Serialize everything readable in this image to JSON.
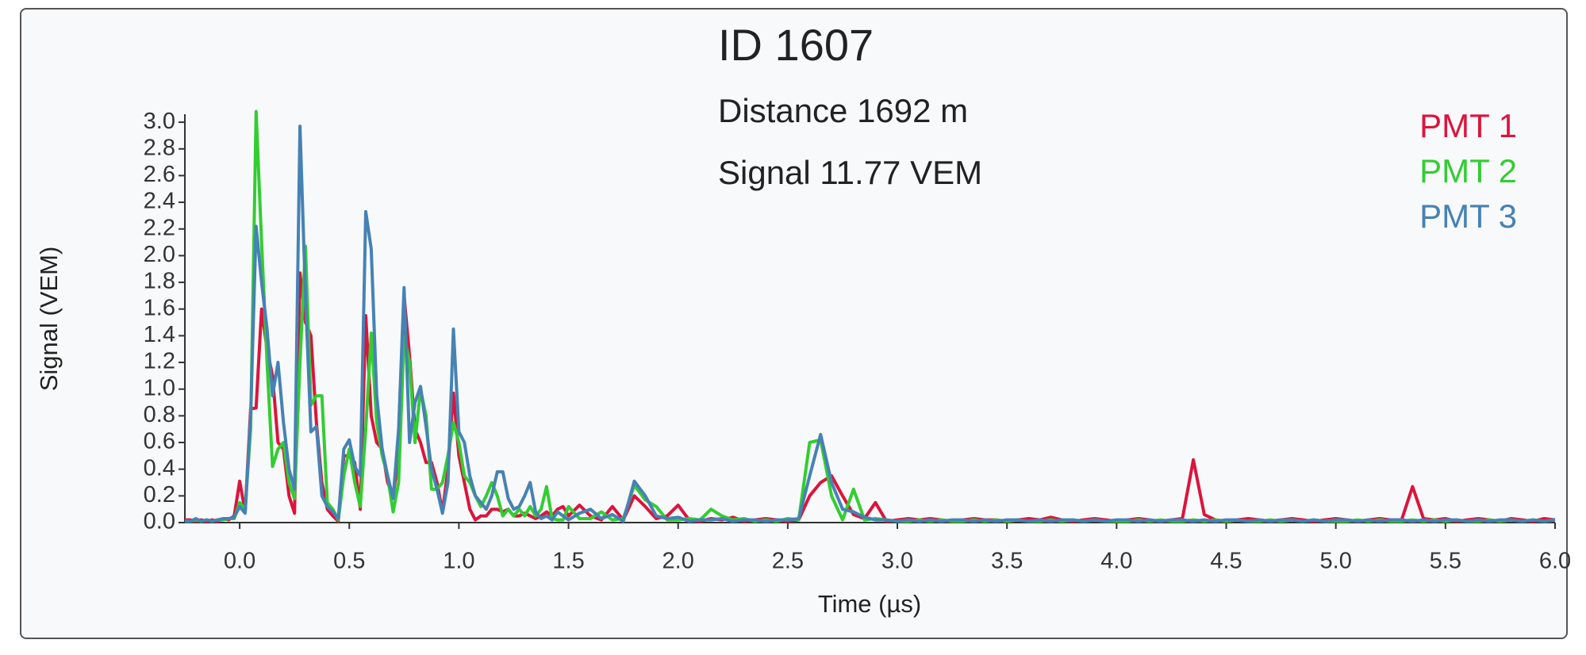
{
  "chart_data": {
    "type": "line",
    "title": "ID 1607",
    "subtitles": [
      "Distance 1692 m",
      "Signal 11.77 VEM"
    ],
    "x_label": "Time (µs)",
    "y_label": "Signal (VEM)",
    "legend": "top-right",
    "xlim": [
      -0.25,
      6.0
    ],
    "ylim": [
      0,
      3.06
    ],
    "xticks": [
      {
        "value": 0,
        "label": "0.0"
      },
      0.5,
      {
        "value": 1,
        "label": "1.0"
      },
      1.5,
      {
        "value": 2,
        "label": "2.0"
      },
      2.5,
      {
        "value": 3,
        "label": "3.0"
      },
      3.5,
      {
        "value": 4,
        "label": "4.0"
      },
      4.5,
      {
        "value": 5,
        "label": "5.0"
      },
      5.5,
      {
        "value": 6,
        "label": "6.0"
      }
    ],
    "yticks": [
      {
        "value": 0,
        "label": "0.0"
      },
      0.2,
      0.4,
      0.6,
      0.8,
      {
        "value": 1,
        "label": "1.0"
      },
      1.2,
      1.4,
      1.6,
      1.8,
      {
        "value": 2,
        "label": "2.0"
      },
      2.2,
      2.4,
      2.6,
      2.8,
      {
        "value": 3,
        "label": "3.0"
      }
    ],
    "x": [
      -0.25,
      -0.225,
      -0.2,
      -0.175,
      -0.15,
      -0.125,
      -0.1,
      -0.075,
      -0.05,
      -0.025,
      0,
      0.025,
      0.05,
      0.075,
      0.1,
      0.125,
      0.15,
      0.175,
      0.2,
      0.225,
      0.25,
      0.275,
      0.3,
      0.325,
      0.35,
      0.375,
      0.4,
      0.425,
      0.45,
      0.475,
      0.5,
      0.525,
      0.55,
      0.575,
      0.6,
      0.625,
      0.65,
      0.675,
      0.7,
      0.725,
      0.75,
      0.775,
      0.8,
      0.825,
      0.85,
      0.875,
      0.9,
      0.925,
      0.95,
      0.975,
      1,
      1.025,
      1.05,
      1.075,
      1.1,
      1.125,
      1.15,
      1.175,
      1.2,
      1.225,
      1.25,
      1.275,
      1.3,
      1.325,
      1.35,
      1.375,
      1.4,
      1.425,
      1.45,
      1.475,
      1.5,
      1.55,
      1.6,
      1.65,
      1.7,
      1.75,
      1.8,
      1.85,
      1.9,
      1.95,
      2,
      2.05,
      2.1,
      2.15,
      2.2,
      2.25,
      2.3,
      2.35,
      2.4,
      2.45,
      2.5,
      2.55,
      2.6,
      2.65,
      2.7,
      2.75,
      2.8,
      2.85,
      2.9,
      2.95,
      3,
      3.05,
      3.1,
      3.15,
      3.2,
      3.25,
      3.3,
      3.35,
      3.4,
      3.45,
      3.5,
      3.55,
      3.6,
      3.65,
      3.7,
      3.75,
      3.8,
      3.85,
      3.9,
      3.95,
      4,
      4.05,
      4.1,
      4.15,
      4.2,
      4.25,
      4.3,
      4.35,
      4.4,
      4.45,
      4.5,
      4.55,
      4.6,
      4.65,
      4.7,
      4.75,
      4.8,
      4.85,
      4.9,
      4.95,
      5,
      5.05,
      5.1,
      5.15,
      5.2,
      5.25,
      5.3,
      5.35,
      5.4,
      5.45,
      5.5,
      5.55,
      5.6,
      5.65,
      5.7,
      5.75,
      5.8,
      5.85,
      5.9,
      5.95,
      6
    ],
    "series": [
      {
        "name": "PMT 1",
        "color": "#dc143c",
        "values": [
          0.02,
          0.02,
          0.01,
          0.02,
          0.01,
          0.02,
          0.01,
          0.03,
          0.02,
          0.05,
          0.31,
          0.08,
          0.85,
          0.86,
          1.6,
          1.3,
          1.1,
          0.6,
          0.55,
          0.2,
          0.07,
          1.87,
          1.5,
          1.4,
          0.75,
          0.3,
          0.1,
          0.05,
          0.01,
          0.5,
          0.5,
          0.45,
          0.1,
          1.55,
          0.8,
          0.6,
          0.55,
          0.3,
          0.2,
          0.5,
          1.7,
          1.25,
          0.7,
          0.6,
          0.45,
          0.45,
          0.3,
          0.08,
          0.4,
          0.97,
          0.5,
          0.3,
          0.1,
          0.02,
          0.05,
          0.05,
          0.1,
          0.1,
          0.08,
          0.1,
          0.05,
          0.05,
          0.07,
          0.05,
          0.03,
          0.05,
          0.08,
          0.05,
          0.1,
          0.12,
          0.05,
          0.13,
          0.05,
          0.02,
          0.12,
          0.02,
          0.2,
          0.12,
          0.03,
          0.05,
          0.13,
          0.02,
          0.01,
          0.03,
          0.02,
          0.04,
          0.01,
          0.02,
          0.03,
          0.02,
          0.01,
          0.02,
          0.2,
          0.3,
          0.35,
          0.2,
          0.06,
          0.03,
          0.15,
          0.01,
          0.02,
          0.03,
          0.02,
          0.03,
          0.02,
          0.01,
          0.02,
          0.03,
          0.02,
          0.02,
          0.01,
          0.02,
          0.03,
          0.02,
          0.04,
          0.02,
          0.01,
          0.02,
          0.03,
          0.02,
          0.01,
          0.02,
          0.03,
          0.02,
          0.01,
          0.02,
          0.03,
          0.47,
          0.06,
          0.02,
          0.01,
          0.02,
          0.03,
          0.02,
          0.01,
          0.02,
          0.03,
          0.02,
          0.01,
          0.02,
          0.03,
          0.02,
          0.01,
          0.02,
          0.03,
          0.02,
          0.02,
          0.27,
          0.03,
          0.02,
          0.03,
          0.01,
          0.02,
          0.03,
          0.02,
          0.01,
          0.03,
          0.02,
          0.01,
          0.03,
          0.02
        ]
      },
      {
        "name": "PMT 2",
        "color": "#32cd32",
        "values": [
          0.01,
          0.01,
          0.02,
          0.01,
          0.02,
          0.01,
          0.02,
          0.02,
          0.03,
          0.03,
          0.15,
          0.1,
          0.7,
          3.08,
          2.1,
          1.2,
          0.42,
          0.55,
          0.6,
          0.3,
          0.18,
          1.2,
          2.07,
          0.88,
          0.95,
          0.95,
          0.15,
          0.1,
          0.02,
          0.35,
          0.55,
          0.3,
          0.12,
          0.7,
          1.42,
          0.75,
          0.5,
          0.35,
          0.08,
          0.3,
          1.4,
          1.2,
          0.6,
          1.0,
          0.8,
          0.25,
          0.25,
          0.3,
          0.5,
          0.75,
          0.6,
          0.35,
          0.3,
          0.2,
          0.12,
          0.2,
          0.3,
          0.2,
          0.05,
          0.1,
          0.05,
          0.1,
          0.05,
          0.12,
          0.05,
          0.1,
          0.27,
          0.03,
          0.02,
          0.02,
          0.12,
          0.03,
          0.03,
          0.08,
          0.02,
          0.03,
          0.28,
          0.17,
          0.12,
          0.02,
          0.02,
          0.03,
          0.02,
          0.1,
          0.05,
          0.02,
          0.03,
          0.01,
          0.02,
          0.01,
          0.03,
          0.02,
          0.6,
          0.62,
          0.2,
          0.02,
          0.25,
          0.02,
          0.03,
          0.02,
          0.01,
          0.01,
          0.02,
          0.01,
          0.02,
          0.01,
          0.01,
          0.02,
          0.01,
          0.02,
          0.01,
          0.02,
          0.01,
          0.01,
          0.02,
          0.01,
          0.02,
          0.01,
          0.02,
          0.01,
          0.01,
          0.01,
          0.02,
          0.01,
          0.02,
          0.01,
          0.01,
          0.02,
          0.01,
          0.02,
          0.01,
          0.02,
          0.01,
          0.01,
          0.02,
          0.01,
          0.02,
          0.01,
          0.02,
          0.01,
          0.01,
          0.01,
          0.02,
          0.01,
          0.02,
          0.01,
          0.01,
          0.02,
          0.01,
          0.02,
          0.01,
          0.02,
          0.01,
          0.01,
          0.02,
          0.01,
          0.02,
          0.01,
          0.02,
          0.01,
          0.02
        ]
      },
      {
        "name": "PMT 3",
        "color": "#4682b4",
        "values": [
          0.01,
          0.01,
          0.03,
          0.01,
          0.02,
          0.01,
          0.02,
          0.03,
          0.03,
          0.04,
          0.12,
          0.07,
          0.8,
          2.22,
          1.8,
          1.45,
          0.95,
          1.2,
          0.75,
          0.4,
          0.25,
          2.97,
          1.7,
          0.68,
          0.72,
          0.2,
          0.12,
          0.08,
          0.03,
          0.55,
          0.62,
          0.42,
          0.35,
          2.33,
          2.05,
          0.95,
          0.55,
          0.35,
          0.18,
          0.7,
          1.76,
          0.6,
          0.9,
          1.02,
          0.72,
          0.4,
          0.25,
          0.07,
          0.3,
          1.45,
          0.68,
          0.6,
          0.35,
          0.2,
          0.15,
          0.1,
          0.2,
          0.38,
          0.38,
          0.18,
          0.1,
          0.12,
          0.2,
          0.3,
          0.08,
          0.03,
          0.05,
          0.02,
          0.08,
          0.05,
          0.02,
          0.07,
          0.1,
          0.03,
          0.06,
          0.01,
          0.31,
          0.2,
          0.05,
          0.03,
          0.04,
          0.01,
          0.02,
          0.02,
          0.03,
          0.01,
          0.02,
          0.02,
          0.01,
          0.02,
          0.02,
          0.03,
          0.35,
          0.66,
          0.3,
          0.1,
          0.08,
          0.04,
          0.02,
          0.02,
          0.01,
          0.02,
          0.01,
          0.02,
          0.01,
          0.02,
          0.02,
          0.01,
          0.02,
          0.01,
          0.02,
          0.02,
          0.01,
          0.02,
          0.01,
          0.02,
          0.02,
          0.01,
          0.02,
          0.01,
          0.02,
          0.02,
          0.01,
          0.02,
          0.01,
          0.02,
          0.02,
          0.01,
          0.02,
          0.01,
          0.02,
          0.02,
          0.01,
          0.02,
          0.01,
          0.02,
          0.02,
          0.01,
          0.02,
          0.01,
          0.02,
          0.02,
          0.01,
          0.02,
          0.01,
          0.02,
          0.02,
          0.01,
          0.02,
          0.01,
          0.02,
          0.02,
          0.01,
          0.02,
          0.01,
          0.02,
          0.02,
          0.01,
          0.02,
          0.01,
          0.02
        ]
      }
    ]
  }
}
